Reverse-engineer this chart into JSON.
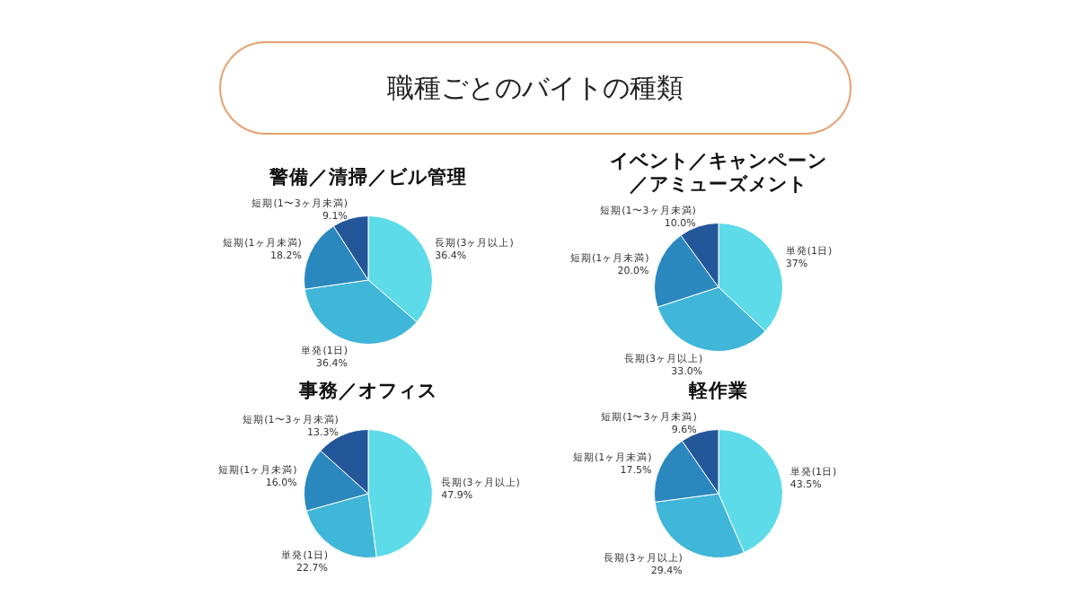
{
  "chart_data": [
    {
      "type": "other",
      "title": "職種ごとのバイトの種類"
    },
    {
      "type": "pie",
      "title": "警備／清掃／ビル管理",
      "categories": [
        "長期(3ヶ月以上)",
        "単発(1日)",
        "短期(1ヶ月未満)",
        "短期(1〜3ヶ月未満)"
      ],
      "values": [
        36.4,
        36.4,
        18.2,
        9.1
      ],
      "value_labels": [
        "36.4%",
        "36.4%",
        "18.2%",
        "9.1%"
      ],
      "colors": [
        "#5ddbe8",
        "#40b6d8",
        "#2b88bf",
        "#24579a"
      ],
      "legend": false
    },
    {
      "type": "pie",
      "title": "イベント／キャンペーン／アミューズメント",
      "categories": [
        "単発(1日)",
        "長期(3ヶ月以上)",
        "短期(1ヶ月未満)",
        "短期(1〜3ヶ月未満)"
      ],
      "values": [
        37,
        33,
        20,
        10
      ],
      "value_labels": [
        "37%",
        "33.0%",
        "20.0%",
        "10.0%"
      ],
      "colors": [
        "#5ddbe8",
        "#40b6d8",
        "#2b88bf",
        "#24579a"
      ],
      "legend": false
    },
    {
      "type": "pie",
      "title": "事務／オフィス",
      "categories": [
        "長期(3ヶ月以上)",
        "単発(1日)",
        "短期(1ヶ月未満)",
        "短期(1〜3ヶ月未満)"
      ],
      "values": [
        47.9,
        22.7,
        16.0,
        13.3
      ],
      "value_labels": [
        "47.9%",
        "22.7%",
        "16.0%",
        "13.3%"
      ],
      "colors": [
        "#5ddbe8",
        "#40b6d8",
        "#2b88bf",
        "#24579a"
      ],
      "legend": false
    },
    {
      "type": "pie",
      "title": "軽作業",
      "categories": [
        "単発(1日)",
        "長期(3ヶ月以上)",
        "短期(1ヶ月未満)",
        "短期(1〜3ヶ月未満)"
      ],
      "values": [
        43.5,
        29.4,
        17.5,
        9.6
      ],
      "value_labels": [
        "43.5%",
        "29.4%",
        "17.5%",
        "9.6%"
      ],
      "colors": [
        "#5ddbe8",
        "#40b6d8",
        "#2b88bf",
        "#24579a"
      ],
      "legend": false
    }
  ]
}
